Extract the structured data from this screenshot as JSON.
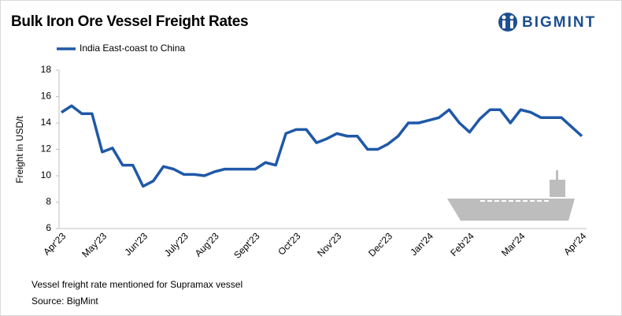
{
  "brand": "BIGMINT",
  "chart_data": {
    "type": "line",
    "title": "Bulk Iron Ore Vessel Freight Rates",
    "y_label": "Freight  in USD/t",
    "notes": [
      "Vessel freight rate mentioned for Supramax vessel",
      "Source:  BigMint"
    ],
    "categories": [
      "Apr'23",
      null,
      null,
      null,
      "May'23",
      null,
      null,
      null,
      "Jun'23",
      null,
      null,
      null,
      "July'23",
      null,
      null,
      "Aug'23",
      null,
      null,
      null,
      "Sept'23",
      null,
      null,
      null,
      "Oct'23",
      null,
      null,
      null,
      "Nov'23",
      null,
      null,
      null,
      null,
      "Dec'23",
      null,
      null,
      null,
      "Jan'24",
      null,
      null,
      null,
      "Feb'24",
      null,
      null,
      null,
      null,
      "Mar'24",
      null,
      null,
      null,
      null,
      null,
      "Apr'24"
    ],
    "series": [
      {
        "name": "India East-coast to China",
        "color": "#1f58a8",
        "values": [
          14.8,
          15.3,
          14.7,
          14.7,
          11.8,
          12.1,
          10.8,
          10.8,
          9.2,
          9.6,
          10.7,
          10.5,
          10.1,
          10.1,
          10.0,
          10.3,
          10.5,
          10.5,
          10.5,
          10.5,
          11.0,
          10.8,
          13.2,
          13.5,
          13.5,
          12.5,
          12.8,
          13.2,
          13.0,
          13.0,
          12.0,
          12.0,
          12.4,
          13.0,
          14.0,
          14.0,
          14.2,
          14.4,
          15.0,
          14.0,
          13.3,
          14.3,
          15.0,
          15.0,
          14.0,
          15.0,
          14.8,
          14.4,
          14.4,
          14.4,
          13.7,
          13.0
        ]
      }
    ],
    "ylim": [
      6,
      18
    ],
    "yticks": [
      6,
      8,
      10,
      12,
      14,
      16,
      18
    ],
    "grid": false
  }
}
